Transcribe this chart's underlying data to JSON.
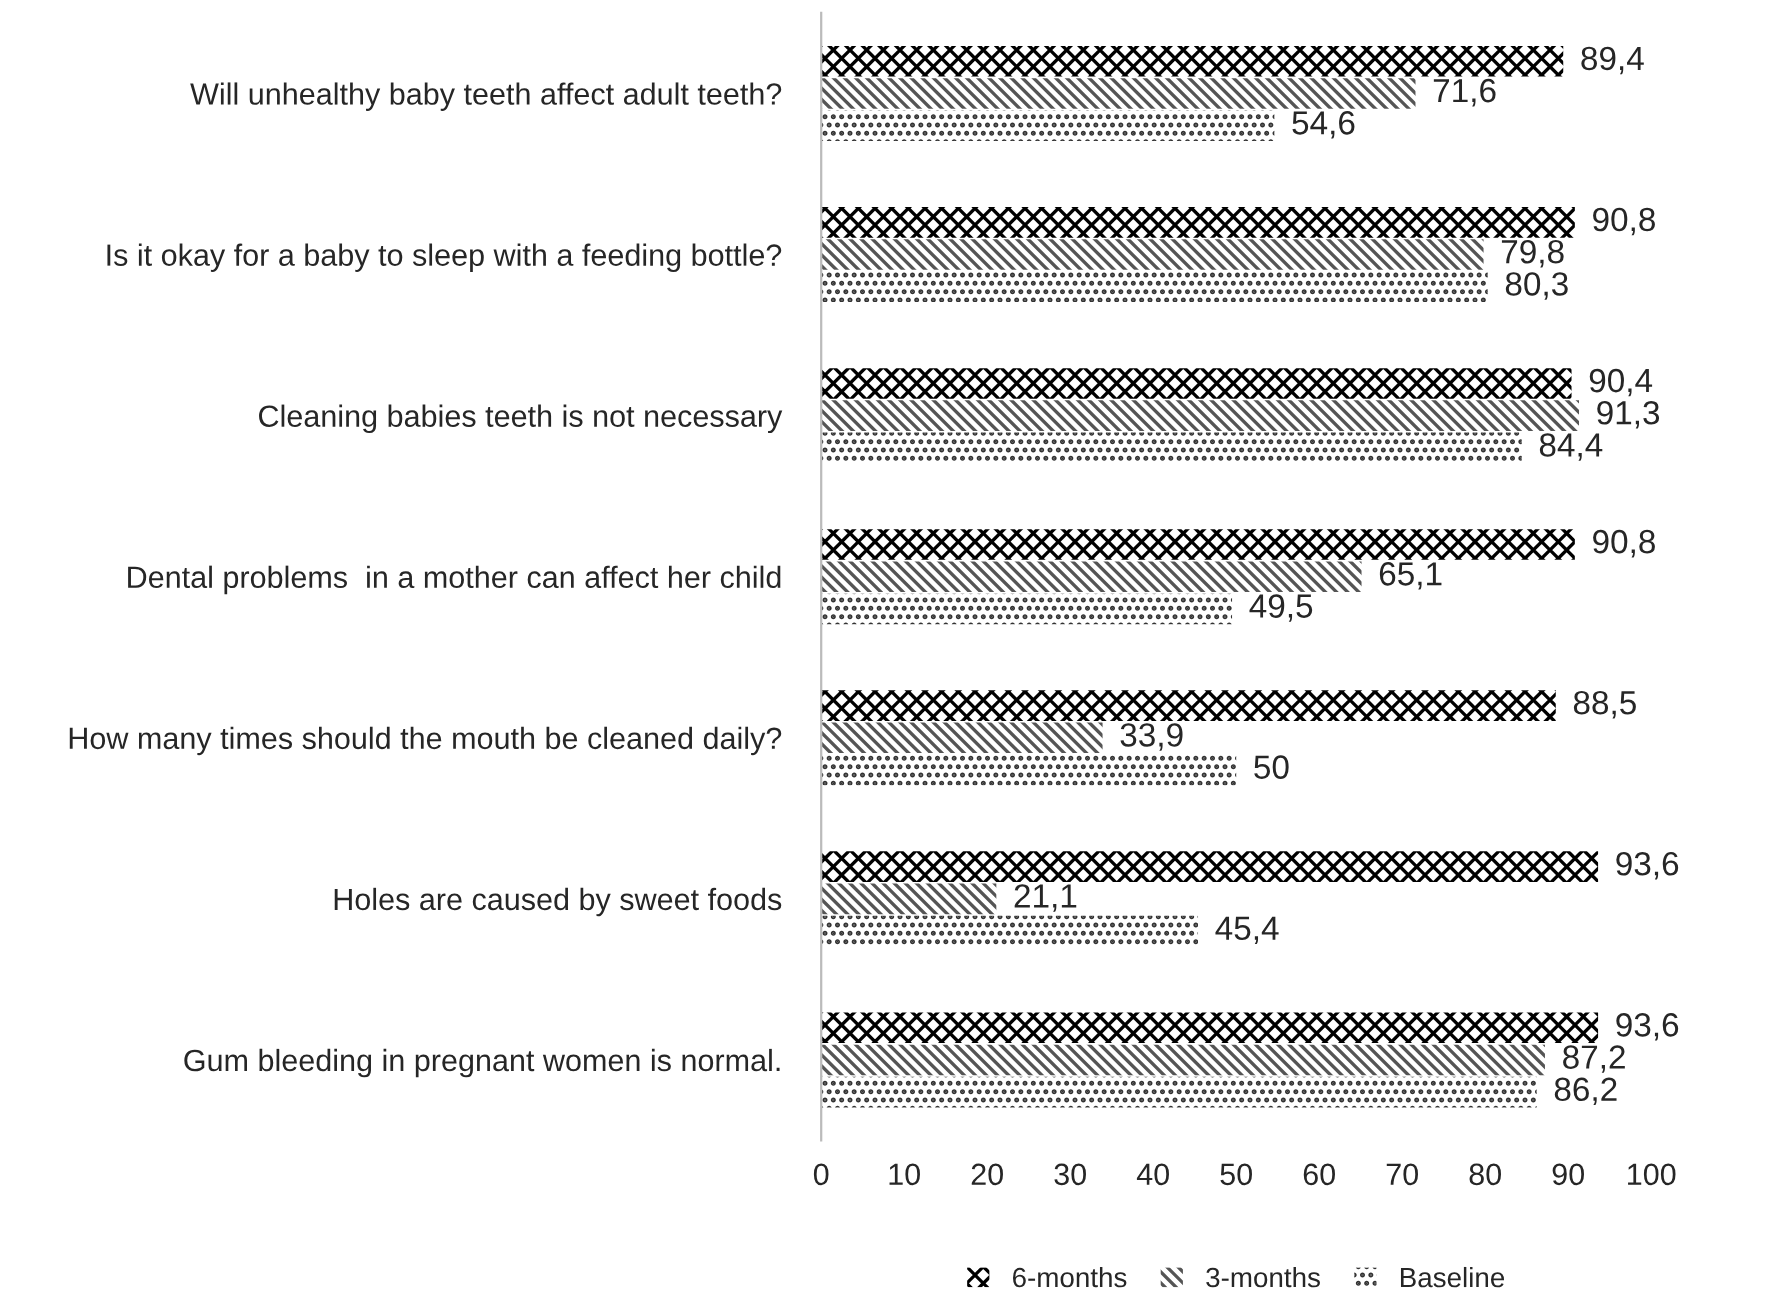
{
  "chart_data": {
    "type": "bar",
    "orientation": "horizontal",
    "categories": [
      "Will unhealthy baby teeth affect adult teeth?",
      "Is it okay for a baby to sleep with a feeding bottle?",
      "Cleaning babies teeth is not necessary",
      "Dental problems  in a mother can affect her child",
      "How many times should the mouth be cleaned daily?",
      "Holes are caused by sweet foods",
      "Gum bleeding in pregnant women is normal."
    ],
    "series": [
      {
        "name": "6-months",
        "color": "#000000",
        "values": [
          89.4,
          90.8,
          90.4,
          90.8,
          88.5,
          93.6,
          93.6
        ],
        "value_labels": [
          "89,4",
          "90,8",
          "90,4",
          "90,8",
          "88,5",
          "93,6",
          "93,6"
        ]
      },
      {
        "name": "3-months",
        "color": "#555555",
        "values": [
          71.6,
          79.8,
          91.3,
          65.1,
          33.9,
          21.1,
          87.2
        ],
        "value_labels": [
          "71,6",
          "79,8",
          "91,3",
          "65,1",
          "33,9",
          "21,1",
          "87,2"
        ]
      },
      {
        "name": "Baseline",
        "color": "#333333",
        "values": [
          54.6,
          80.3,
          84.4,
          49.5,
          50,
          45.4,
          86.2
        ],
        "value_labels": [
          "54,6",
          "80,3",
          "84,4",
          "49,5",
          "50",
          "45,4",
          "86,2"
        ]
      }
    ],
    "xlim": [
      0,
      100
    ],
    "xticks": [
      0,
      10,
      20,
      30,
      40,
      50,
      60,
      70,
      80,
      90,
      100
    ],
    "grid": false,
    "legend": "bottom"
  }
}
